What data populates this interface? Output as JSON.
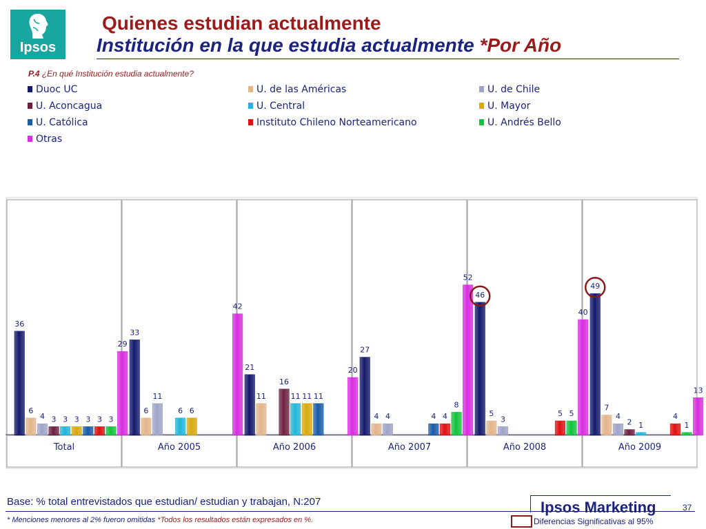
{
  "header": {
    "logo_text": "Ipsos",
    "title_line1": "Quienes estudian actualmente",
    "title_line2": "Institución en la que estudia actualmente",
    "title_line2_highlight": "*Por Año"
  },
  "question": {
    "code": "P.4",
    "text": "¿En qué Institución estudia actualmente?"
  },
  "chart_data": {
    "type": "bar",
    "categories": [
      "Total",
      "Año 2005",
      "Año 2006",
      "Año 2007",
      "Año 2008",
      "Año 2009"
    ],
    "series": [
      {
        "name": "Duoc UC",
        "color": "#141a6b",
        "values": [
          36,
          33,
          21,
          27,
          46,
          49
        ]
      },
      {
        "name": "U. de las Américas",
        "color": "#e2b48c",
        "values": [
          6,
          6,
          11,
          4,
          5,
          7
        ]
      },
      {
        "name": "U. de Chile",
        "color": "#9fa3c8",
        "values": [
          4,
          11,
          null,
          4,
          3,
          4
        ]
      },
      {
        "name": "U. Aconcagua",
        "color": "#6e2042",
        "values": [
          3,
          null,
          16,
          null,
          null,
          2
        ]
      },
      {
        "name": "U. Central",
        "color": "#22b5d8",
        "values": [
          3,
          6,
          11,
          null,
          null,
          1
        ]
      },
      {
        "name": "U. Mayor",
        "color": "#d8a80e",
        "values": [
          3,
          6,
          11,
          null,
          null,
          null
        ]
      },
      {
        "name": "U. Católica",
        "color": "#1a5aa6",
        "values": [
          3,
          null,
          11,
          4,
          null,
          null
        ]
      },
      {
        "name": "Instituto Chileno Norteamericano",
        "color": "#e01010",
        "values": [
          3,
          null,
          null,
          4,
          5,
          4
        ]
      },
      {
        "name": "U. Andrés Bello",
        "color": "#12c23a",
        "values": [
          3,
          null,
          null,
          8,
          5,
          1
        ]
      },
      {
        "name": "Otras",
        "color": "#d82ee0",
        "values": [
          29,
          42,
          20,
          52,
          40,
          13
        ]
      }
    ],
    "highlighted": [
      {
        "category": "Año 2008",
        "series": "Duoc UC"
      },
      {
        "category": "Año 2009",
        "series": "Duoc UC"
      }
    ],
    "ylim": [
      0,
      60
    ],
    "legend_position": "top",
    "grid": false
  },
  "footer": {
    "base_text": "Base: % total entrevistados que estudian/ estudian y trabajan, N:207",
    "note_text": "* Menciones menores al 2% fueron omitidas",
    "note_highlight": "*Todos los resultados están expresados en %.",
    "brand": "Ipsos Marketing",
    "page_number": "37",
    "sig_label": "Diferencias Significativas al 95%"
  }
}
